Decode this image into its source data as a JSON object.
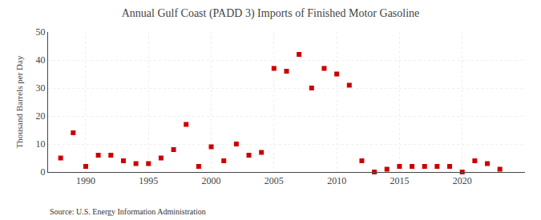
{
  "chart_data": {
    "type": "scatter",
    "title": "Annual Gulf Coast (PADD 3) Imports of Finished Motor Gasoline",
    "ylabel": "Thousand Barrels per Day",
    "annotations": [
      "Source: U.S. Energy Information Administration"
    ],
    "x": [
      1988,
      1989,
      1990,
      1991,
      1992,
      1993,
      1994,
      1995,
      1996,
      1997,
      1998,
      1999,
      2000,
      2001,
      2002,
      2003,
      2004,
      2005,
      2006,
      2007,
      2008,
      2009,
      2010,
      2011,
      2012,
      2013,
      2014,
      2015,
      2016,
      2017,
      2018,
      2019,
      2020,
      2021,
      2022,
      2023
    ],
    "values": [
      5,
      14,
      2,
      6,
      6,
      4,
      3,
      3,
      5,
      8,
      17,
      2,
      9,
      4,
      10,
      6,
      7,
      37,
      36,
      42,
      30,
      37,
      35,
      31,
      4,
      0,
      1,
      2,
      2,
      2,
      2,
      2,
      0,
      4,
      3,
      1
    ],
    "color": "#cc0000",
    "marker": "square",
    "xlim": [
      1987,
      2025
    ],
    "ylim": [
      0,
      50
    ],
    "xticks": [
      1990,
      1995,
      2000,
      2005,
      2010,
      2015,
      2020
    ],
    "yticks": [
      0,
      10,
      20,
      30,
      40,
      50
    ],
    "grid": true
  }
}
